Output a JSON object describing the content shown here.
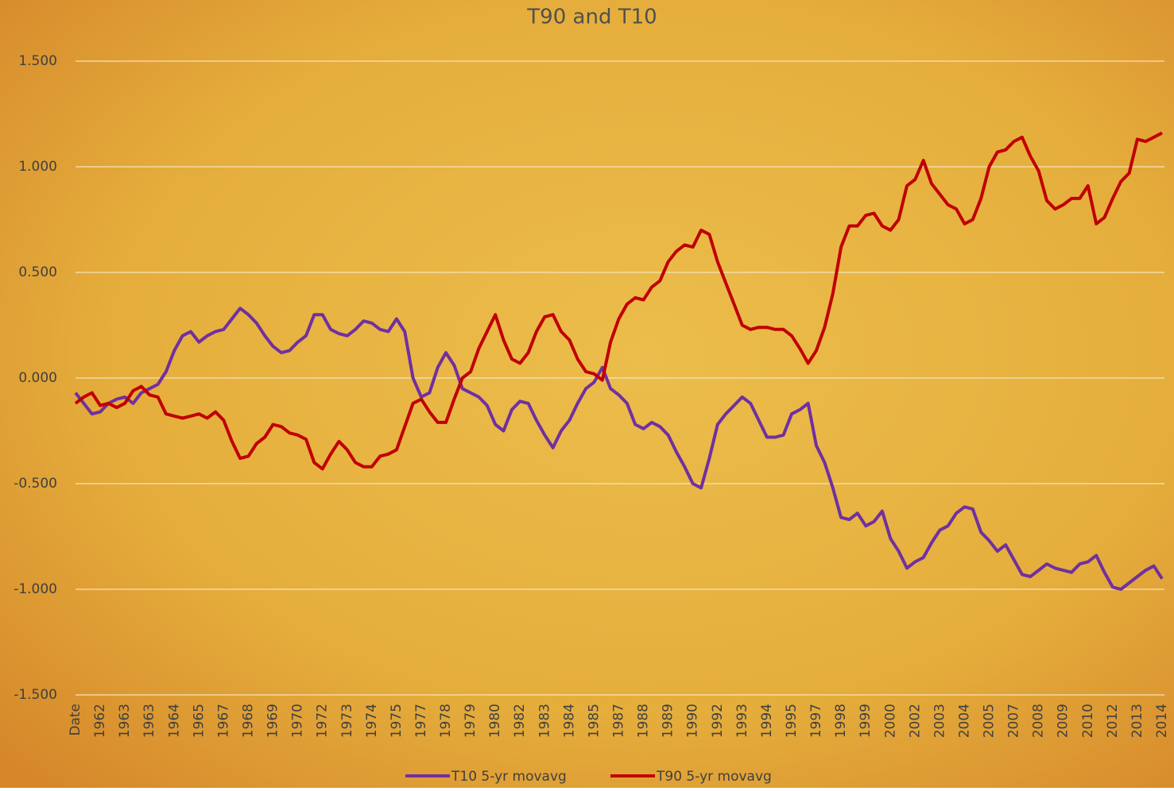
{
  "chart_data": {
    "type": "line",
    "title": "T90 and T10",
    "categories": [
      "Date",
      null,
      null,
      "1962",
      null,
      null,
      "1963",
      null,
      null,
      "1963",
      null,
      null,
      "1964",
      null,
      null,
      "1965",
      null,
      null,
      "1967",
      null,
      null,
      "1968",
      null,
      null,
      "1969",
      null,
      null,
      "1970",
      null,
      null,
      "1972",
      null,
      null,
      "1973",
      null,
      null,
      "1974",
      null,
      null,
      "1975",
      null,
      null,
      "1977",
      null,
      null,
      "1978",
      null,
      null,
      "1979",
      null,
      null,
      "1980",
      null,
      null,
      "1982",
      null,
      null,
      "1983",
      null,
      null,
      "1984",
      null,
      null,
      "1985",
      null,
      null,
      "1987",
      null,
      null,
      "1988",
      null,
      null,
      "1989",
      null,
      null,
      "1990",
      null,
      null,
      "1992",
      null,
      null,
      "1993",
      null,
      null,
      "1994",
      null,
      null,
      "1995",
      null,
      null,
      "1997",
      null,
      null,
      "1998",
      null,
      null,
      "1999",
      null,
      null,
      "2000",
      null,
      null,
      "2002",
      null,
      null,
      "2003",
      null,
      null,
      "2004",
      null,
      null,
      "2005",
      null,
      null,
      "2007",
      null,
      null,
      "2008",
      null,
      null,
      "2009",
      null,
      null,
      "2010",
      null,
      null,
      "2012",
      null,
      null,
      "2013",
      null,
      null,
      "2014"
    ],
    "series": [
      {
        "name": "T10 5-yr movavg",
        "color": "#7030a0",
        "values": [
          -0.07,
          -0.12,
          -0.17,
          -0.16,
          -0.12,
          -0.1,
          -0.09,
          -0.12,
          -0.07,
          -0.05,
          -0.03,
          0.03,
          0.13,
          0.2,
          0.22,
          0.17,
          0.2,
          0.22,
          0.23,
          0.28,
          0.33,
          0.3,
          0.26,
          0.2,
          0.15,
          0.12,
          0.13,
          0.17,
          0.2,
          0.3,
          0.3,
          0.23,
          0.21,
          0.2,
          0.23,
          0.27,
          0.26,
          0.23,
          0.22,
          0.28,
          0.22,
          0.0,
          -0.09,
          -0.07,
          0.05,
          0.12,
          0.06,
          -0.05,
          -0.07,
          -0.09,
          -0.13,
          -0.22,
          -0.25,
          -0.15,
          -0.11,
          -0.12,
          -0.2,
          -0.27,
          -0.33,
          -0.25,
          -0.2,
          -0.12,
          -0.05,
          -0.02,
          0.05,
          -0.05,
          -0.08,
          -0.12,
          -0.22,
          -0.24,
          -0.21,
          -0.23,
          -0.27,
          -0.35,
          -0.42,
          -0.5,
          -0.52,
          -0.38,
          -0.22,
          -0.17,
          -0.13,
          -0.09,
          -0.12,
          -0.2,
          -0.28,
          -0.28,
          -0.27,
          -0.17,
          -0.15,
          -0.12,
          -0.32,
          -0.4,
          -0.52,
          -0.66,
          -0.67,
          -0.64,
          -0.7,
          -0.68,
          -0.63,
          -0.76,
          -0.82,
          -0.9,
          -0.87,
          -0.85,
          -0.78,
          -0.72,
          -0.7,
          -0.64,
          -0.61,
          -0.62,
          -0.73,
          -0.77,
          -0.82,
          -0.79,
          -0.86,
          -0.93,
          -0.94,
          -0.91,
          -0.88,
          -0.9,
          -0.91,
          -0.92,
          -0.88,
          -0.87,
          -0.84,
          -0.92,
          -0.99,
          -1.0,
          -0.97,
          -0.94,
          -0.91,
          -0.89,
          -0.95
        ]
      },
      {
        "name": "T90 5-yr movavg",
        "color": "#c00000",
        "values": [
          -0.12,
          -0.09,
          -0.07,
          -0.13,
          -0.12,
          -0.14,
          -0.12,
          -0.06,
          -0.04,
          -0.08,
          -0.09,
          -0.17,
          -0.18,
          -0.19,
          -0.18,
          -0.17,
          -0.19,
          -0.16,
          -0.2,
          -0.3,
          -0.38,
          -0.37,
          -0.31,
          -0.28,
          -0.22,
          -0.23,
          -0.26,
          -0.27,
          -0.29,
          -0.4,
          -0.43,
          -0.36,
          -0.3,
          -0.34,
          -0.4,
          -0.42,
          -0.42,
          -0.37,
          -0.36,
          -0.34,
          -0.23,
          -0.12,
          -0.1,
          -0.16,
          -0.21,
          -0.21,
          -0.1,
          0.0,
          0.03,
          0.14,
          0.22,
          0.3,
          0.18,
          0.09,
          0.07,
          0.12,
          0.22,
          0.29,
          0.3,
          0.22,
          0.18,
          0.09,
          0.03,
          0.02,
          -0.01,
          0.17,
          0.28,
          0.35,
          0.38,
          0.37,
          0.43,
          0.46,
          0.55,
          0.6,
          0.63,
          0.62,
          0.7,
          0.68,
          0.55,
          0.45,
          0.35,
          0.25,
          0.23,
          0.24,
          0.24,
          0.23,
          0.23,
          0.2,
          0.14,
          0.07,
          0.13,
          0.24,
          0.4,
          0.62,
          0.72,
          0.72,
          0.77,
          0.78,
          0.72,
          0.7,
          0.75,
          0.91,
          0.94,
          1.03,
          0.92,
          0.87,
          0.82,
          0.8,
          0.73,
          0.75,
          0.85,
          1.0,
          1.07,
          1.08,
          1.12,
          1.14,
          1.05,
          0.98,
          0.84,
          0.8,
          0.82,
          0.85,
          0.85,
          0.91,
          0.73,
          0.76,
          0.85,
          0.93,
          0.97,
          1.13,
          1.12,
          1.14,
          1.16
        ]
      }
    ],
    "ylim": [
      -1.5,
      1.5
    ],
    "yticks": [
      {
        "value": -1.5,
        "label": "-1.500"
      },
      {
        "value": -1,
        "label": "-1.000"
      },
      {
        "value": -0.5,
        "label": "-0.500"
      },
      {
        "value": 0,
        "label": "0.000"
      },
      {
        "value": 0.5,
        "label": "0.500"
      },
      {
        "value": 1,
        "label": "1.000"
      },
      {
        "value": 1.5,
        "label": "1.500"
      }
    ],
    "grid": true,
    "legend": "bottom"
  }
}
